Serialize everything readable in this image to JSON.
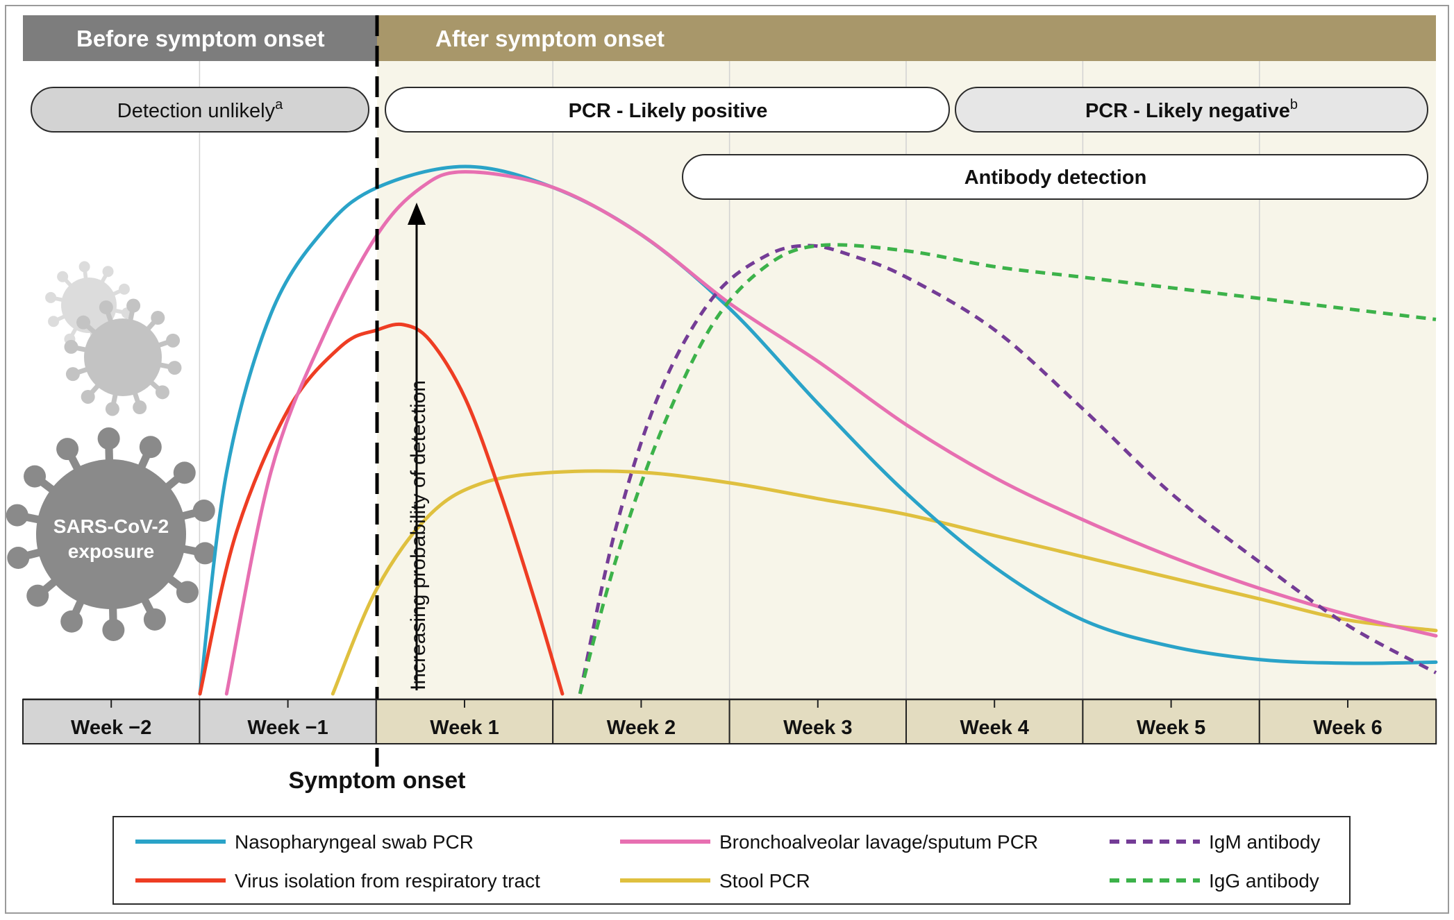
{
  "header": {
    "before_label": "Before symptom onset",
    "after_label": "After symptom onset"
  },
  "pills": {
    "detection_unlikely": "Detection unlikely",
    "detection_unlikely_sup": "a",
    "pcr_positive": "PCR - Likely positive",
    "pcr_negative": "PCR - Likely negative",
    "pcr_negative_sup": "b",
    "antibody": "Antibody detection"
  },
  "virus": {
    "line1": "SARS-CoV-2",
    "line2": "exposure"
  },
  "symptom_onset_label": "Symptom onset",
  "colors": {
    "before_header": "#7d7d7d",
    "after_header": "#a8976a",
    "before_bg": "#ffffff",
    "after_bg": "#f7f5e9",
    "before_axis": "#d4d4d4",
    "after_axis": "#e3dcc0",
    "virus_dark": "#8a8a8a",
    "virus_light": "#c3c3c3"
  },
  "icons": [
    "sars-cov-2-virus-icon",
    "arrow-up-icon"
  ],
  "chart_data": {
    "type": "line",
    "xlabel": "",
    "ylabel": "Increasing probability of detection",
    "x_unit": "weeks relative to symptom onset",
    "categories": [
      "Week −2",
      "Week −1",
      "Week 1",
      "Week 2",
      "Week 3",
      "Week 4",
      "Week 5",
      "Week 6"
    ],
    "xlim": [
      -2,
      6
    ],
    "ylim": [
      0,
      1
    ],
    "yticks": false,
    "grid": "vertical",
    "symptom_onset_x": 0,
    "legend_position": "bottom",
    "series": [
      {
        "name": "Nasopharyngeal swab PCR",
        "color": "#2aa3c8",
        "dash": "solid",
        "points": [
          [
            -1,
            0.0
          ],
          [
            -0.85,
            0.42
          ],
          [
            -0.6,
            0.72
          ],
          [
            -0.3,
            0.88
          ],
          [
            0,
            0.96
          ],
          [
            0.5,
            1.0
          ],
          [
            1,
            0.96
          ],
          [
            1.5,
            0.87
          ],
          [
            2,
            0.73
          ],
          [
            2.5,
            0.55
          ],
          [
            3,
            0.38
          ],
          [
            3.5,
            0.24
          ],
          [
            4,
            0.14
          ],
          [
            4.5,
            0.09
          ],
          [
            5,
            0.065
          ],
          [
            5.5,
            0.058
          ],
          [
            6,
            0.06
          ]
        ]
      },
      {
        "name": "Bronchoalveolar lavage/sputum PCR",
        "color": "#e76fb1",
        "dash": "solid",
        "points": [
          [
            -0.85,
            0.0
          ],
          [
            -0.6,
            0.42
          ],
          [
            -0.3,
            0.68
          ],
          [
            0,
            0.87
          ],
          [
            0.25,
            0.96
          ],
          [
            0.5,
            0.99
          ],
          [
            1,
            0.96
          ],
          [
            1.5,
            0.87
          ],
          [
            2,
            0.74
          ],
          [
            2.5,
            0.63
          ],
          [
            3,
            0.51
          ],
          [
            3.5,
            0.41
          ],
          [
            4,
            0.33
          ],
          [
            4.5,
            0.26
          ],
          [
            5,
            0.2
          ],
          [
            5.5,
            0.15
          ],
          [
            6,
            0.11
          ]
        ]
      },
      {
        "name": "Virus isolation from respiratory tract",
        "color": "#ee3d23",
        "dash": "solid",
        "points": [
          [
            -1,
            0.0
          ],
          [
            -0.8,
            0.3
          ],
          [
            -0.5,
            0.54
          ],
          [
            -0.2,
            0.66
          ],
          [
            0,
            0.69
          ],
          [
            0.15,
            0.7
          ],
          [
            0.3,
            0.67
          ],
          [
            0.5,
            0.56
          ],
          [
            0.7,
            0.38
          ],
          [
            0.9,
            0.17
          ],
          [
            1.05,
            0.0
          ]
        ]
      },
      {
        "name": "Stool PCR",
        "color": "#dfc03f",
        "dash": "solid",
        "points": [
          [
            -0.25,
            0.0
          ],
          [
            0,
            0.2
          ],
          [
            0.3,
            0.34
          ],
          [
            0.6,
            0.4
          ],
          [
            1,
            0.42
          ],
          [
            1.5,
            0.42
          ],
          [
            2,
            0.4
          ],
          [
            2.5,
            0.37
          ],
          [
            3,
            0.34
          ],
          [
            3.5,
            0.3
          ],
          [
            4,
            0.26
          ],
          [
            4.5,
            0.22
          ],
          [
            5,
            0.18
          ],
          [
            5.5,
            0.14
          ],
          [
            6,
            0.12
          ]
        ]
      },
      {
        "name": "IgM antibody",
        "color": "#743c96",
        "dash": "dashed",
        "points": [
          [
            1.15,
            0.0
          ],
          [
            1.35,
            0.31
          ],
          [
            1.6,
            0.57
          ],
          [
            1.9,
            0.75
          ],
          [
            2.2,
            0.83
          ],
          [
            2.45,
            0.85
          ],
          [
            2.7,
            0.83
          ],
          [
            3,
            0.79
          ],
          [
            3.5,
            0.69
          ],
          [
            4,
            0.54
          ],
          [
            4.5,
            0.38
          ],
          [
            5,
            0.25
          ],
          [
            5.5,
            0.13
          ],
          [
            6,
            0.04
          ]
        ]
      },
      {
        "name": "IgG antibody",
        "color": "#3cb24a",
        "dash": "dashed",
        "points": [
          [
            1.15,
            0.0
          ],
          [
            1.35,
            0.25
          ],
          [
            1.6,
            0.49
          ],
          [
            1.9,
            0.7
          ],
          [
            2.2,
            0.81
          ],
          [
            2.5,
            0.85
          ],
          [
            3,
            0.84
          ],
          [
            3.5,
            0.81
          ],
          [
            4,
            0.79
          ],
          [
            4.5,
            0.77
          ],
          [
            5,
            0.75
          ],
          [
            5.5,
            0.73
          ],
          [
            6,
            0.71
          ]
        ]
      }
    ]
  }
}
